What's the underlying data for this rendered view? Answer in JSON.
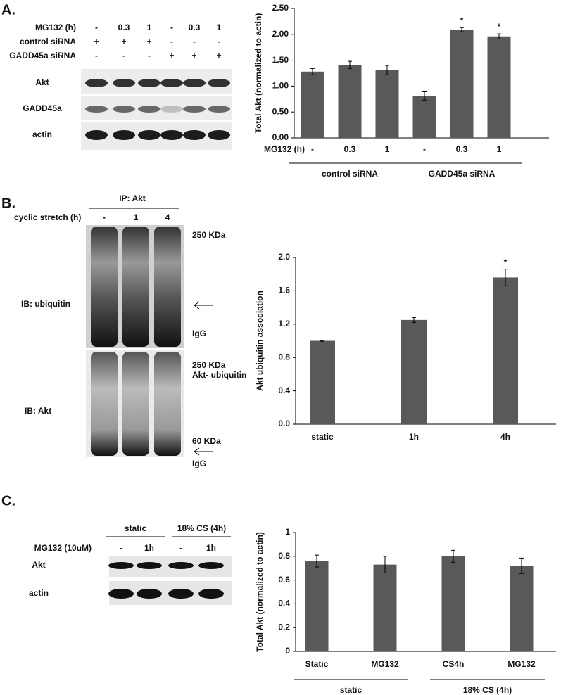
{
  "panel_labels": [
    "A.",
    "B.",
    "C."
  ],
  "blots": [
    {
      "lane_headers": [
        {
          "label": "MG132 (h)",
          "lanes": [
            "-",
            "0.3",
            "1",
            "-",
            "0.3",
            "1"
          ]
        },
        {
          "label": "control siRNA",
          "lanes": [
            "+",
            "+",
            "+",
            "-",
            "-",
            "-"
          ]
        },
        {
          "label": "GADD45a siRNA",
          "lanes": [
            "-",
            "-",
            "-",
            "+",
            "+",
            "+"
          ]
        }
      ],
      "rows": [
        "Akt",
        "GADD45a",
        "actin"
      ]
    },
    {
      "title": "IP: Akt",
      "lane_headers": [
        {
          "label": "cyclic stretch (h)",
          "lanes": [
            "-",
            "1",
            "4"
          ]
        }
      ],
      "sections": [
        {
          "label": "IB: ubiquitin",
          "markers": [
            "250 KDa",
            "IgG"
          ]
        },
        {
          "label": "IB: Akt",
          "markers": [
            "250 KDa",
            "Akt- ubiquitin",
            "60 KDa",
            "IgG"
          ]
        }
      ]
    },
    {
      "groups": [
        "static",
        "18% CS (4h)"
      ],
      "lane_headers": [
        {
          "label": "MG132 (10uM)",
          "lanes": [
            "-",
            "1h",
            "-",
            "1h"
          ]
        }
      ],
      "rows": [
        "Akt",
        "actin"
      ]
    }
  ],
  "chart_data": [
    {
      "type": "bar",
      "ylabel": "Total Akt  (normalized to actin)",
      "xlabel": "MG132 (h)",
      "categories": [
        "-",
        "0.3",
        "1",
        "-",
        "0.3",
        "1"
      ],
      "groups": [
        "control siRNA",
        "GADD45a siRNA"
      ],
      "values": [
        1.28,
        1.41,
        1.31,
        0.81,
        2.09,
        1.96
      ],
      "errors": [
        0.06,
        0.07,
        0.09,
        0.08,
        0.04,
        0.05
      ],
      "significance": [
        null,
        null,
        null,
        null,
        "*",
        "*"
      ],
      "color": "#595959",
      "ylim": [
        0,
        2.5
      ],
      "yticks": [
        {
          "value": 0,
          "label": "0.00"
        },
        {
          "value": 0.5,
          "label": "0.50"
        },
        {
          "value": 1,
          "label": "1.00"
        },
        {
          "value": 1.5,
          "label": "1.50"
        },
        {
          "value": 2,
          "label": "2.00"
        },
        {
          "value": 2.5,
          "label": "2.50"
        }
      ]
    },
    {
      "type": "bar",
      "ylabel": "Akt ubiquitin association",
      "categories": [
        "static",
        "1h",
        "4h"
      ],
      "values": [
        1.0,
        1.25,
        1.76
      ],
      "errors": [
        0.005,
        0.03,
        0.1
      ],
      "significance": [
        null,
        null,
        "*"
      ],
      "color": "#595959",
      "ylim": [
        0,
        2
      ],
      "yticks": [
        {
          "value": 0,
          "label": "0.0"
        },
        {
          "value": 0.4,
          "label": "0.4"
        },
        {
          "value": 0.8,
          "label": "0.8"
        },
        {
          "value": 1.2,
          "label": "1.2"
        },
        {
          "value": 1.6,
          "label": "1.6"
        },
        {
          "value": 2,
          "label": "2.0"
        }
      ]
    },
    {
      "type": "bar",
      "ylabel": "Total Akt (normalized to actin)",
      "categories": [
        "Static",
        "MG132",
        "CS4h",
        "MG132"
      ],
      "groups": [
        "static",
        "18% CS (4h)"
      ],
      "values": [
        0.76,
        0.73,
        0.8,
        0.72
      ],
      "errors": [
        0.05,
        0.07,
        0.05,
        0.065
      ],
      "color": "#595959",
      "ylim": [
        0,
        1
      ],
      "yticks": [
        0,
        0.2,
        0.4,
        0.6,
        0.8,
        1
      ]
    }
  ]
}
